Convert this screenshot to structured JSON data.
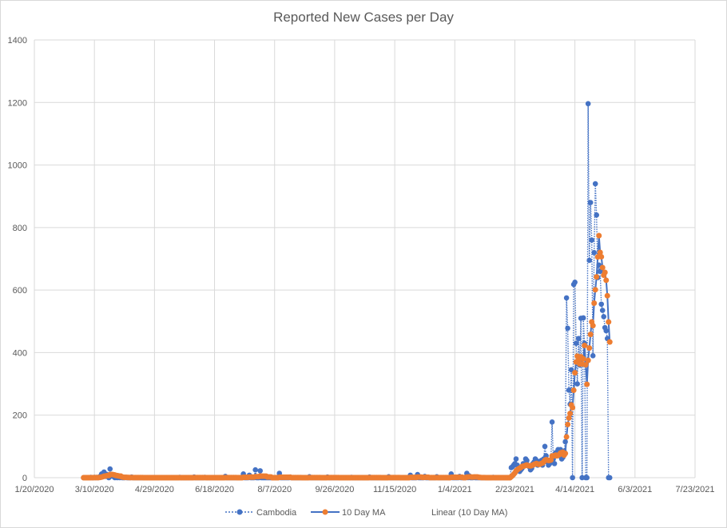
{
  "chart_data": {
    "type": "line",
    "title": "Reported New Cases per Day",
    "xlabel": "",
    "ylabel": "",
    "ylim": [
      0,
      1400
    ],
    "yticks": [
      "0",
      "200",
      "400",
      "600",
      "800",
      "1000",
      "1200",
      "1400"
    ],
    "x_origin_date": "2020-01-20",
    "xlim_days": [
      0,
      550
    ],
    "xticks": [
      "1/20/2020",
      "3/10/2020",
      "4/29/2020",
      "6/18/2020",
      "8/7/2020",
      "9/26/2020",
      "11/15/2020",
      "1/4/2021",
      "2/23/2021",
      "4/14/2021",
      "6/3/2021",
      "7/23/2021"
    ],
    "grid": true,
    "legend_position": "bottom",
    "legend": [
      "Cambodia",
      "10 Day MA",
      "Linear (10 Day MA)"
    ],
    "series_start": "2020-03-01",
    "series_end": "2021-05-13",
    "note_zero_days": "days not listed in sparse_values have 0 new cases",
    "sparse_values": {
      "2020-03-07": 1,
      "2020-03-10": 1,
      "2020-03-12": 1,
      "2020-03-14": 2,
      "2020-03-15": 5,
      "2020-03-16": 12,
      "2020-03-17": 9,
      "2020-03-18": 18,
      "2020-03-19": 4,
      "2020-03-20": 11,
      "2020-03-21": 9,
      "2020-03-23": 28,
      "2020-03-24": 6,
      "2020-03-25": 5,
      "2020-03-26": 4,
      "2020-03-28": 3,
      "2020-03-30": 2,
      "2020-04-01": 2,
      "2020-04-05": 1,
      "2020-04-10": 2,
      "2020-05-20": 1,
      "2020-06-01": 2,
      "2020-06-10": 1,
      "2020-06-27": 4,
      "2020-07-12": 12,
      "2020-07-17": 8,
      "2020-07-22": 25,
      "2020-07-26": 22,
      "2020-08-11": 14,
      "2020-08-20": 2,
      "2020-09-05": 3,
      "2020-09-20": 2,
      "2020-10-10": 1,
      "2020-10-25": 2,
      "2020-11-10": 3,
      "2020-11-28": 8,
      "2020-12-04": 10,
      "2020-12-10": 4,
      "2020-12-20": 3,
      "2021-01-01": 12,
      "2021-01-08": 4,
      "2021-01-14": 14,
      "2021-01-16": 6,
      "2021-01-20": 2,
      "2021-02-05": 1,
      "2021-02-20": 32,
      "2021-02-21": 35,
      "2021-02-22": 40,
      "2021-02-23": 45,
      "2021-02-24": 60,
      "2021-02-25": 40,
      "2021-02-26": 30,
      "2021-02-27": 20,
      "2021-02-28": 25,
      "2021-03-01": 30,
      "2021-03-02": 45,
      "2021-03-03": 40,
      "2021-03-04": 60,
      "2021-03-05": 55,
      "2021-03-06": 40,
      "2021-03-07": 35,
      "2021-03-08": 25,
      "2021-03-09": 30,
      "2021-03-10": 45,
      "2021-03-11": 50,
      "2021-03-12": 60,
      "2021-03-13": 55,
      "2021-03-14": 40,
      "2021-03-15": 45,
      "2021-03-16": 50,
      "2021-03-17": 55,
      "2021-03-18": 40,
      "2021-03-19": 60,
      "2021-03-20": 100,
      "2021-03-21": 70,
      "2021-03-22": 50,
      "2021-03-23": 40,
      "2021-03-24": 45,
      "2021-03-25": 55,
      "2021-03-26": 178,
      "2021-03-27": 60,
      "2021-03-28": 45,
      "2021-03-29": 80,
      "2021-03-30": 75,
      "2021-03-31": 90,
      "2021-04-01": 70,
      "2021-04-02": 90,
      "2021-04-03": 60,
      "2021-04-04": 65,
      "2021-04-05": 85,
      "2021-04-06": 115,
      "2021-04-07": 575,
      "2021-04-08": 478,
      "2021-04-09": 280,
      "2021-04-10": 235,
      "2021-04-11": 345,
      "2021-04-13": 618,
      "2021-04-14": 625,
      "2021-04-15": 430,
      "2021-04-16": 300,
      "2021-04-17": 445,
      "2021-04-18": 360,
      "2021-04-19": 510,
      "2021-04-21": 511,
      "2021-04-22": 430,
      "2021-04-25": 1196,
      "2021-04-26": 695,
      "2021-04-27": 880,
      "2021-04-28": 760,
      "2021-04-29": 390,
      "2021-04-30": 720,
      "2021-05-01": 940,
      "2021-05-02": 840,
      "2021-05-03": 640,
      "2021-05-04": 680,
      "2021-05-05": 660,
      "2021-05-06": 555,
      "2021-05-07": 535,
      "2021-05-08": 515,
      "2021-05-09": 480,
      "2021-05-10": 470,
      "2021-05-11": 445
    },
    "ma_window": 10,
    "colors": {
      "cambodia": "#4472C4",
      "ma_marker": "#ED7D31",
      "ma_line": "#4472C4",
      "grid": "#d9d9d9",
      "text": "#595959"
    }
  }
}
